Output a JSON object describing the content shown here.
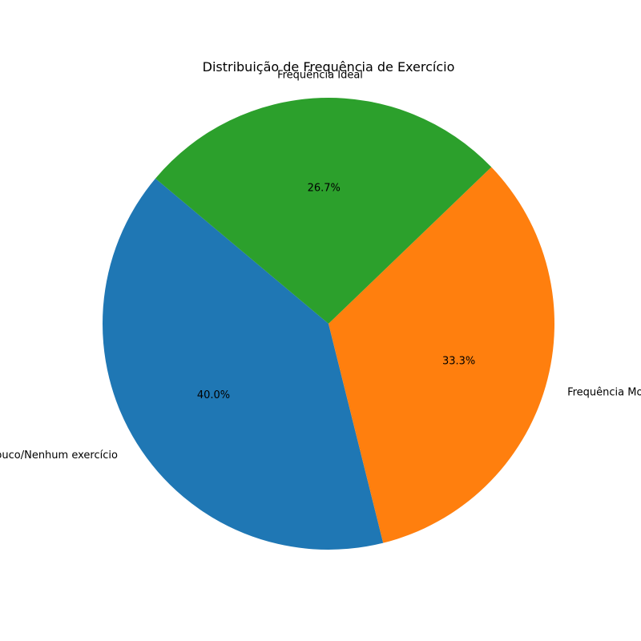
{
  "chart_data": {
    "type": "pie",
    "title": "Distribuição de Frequência de Exercício",
    "labels": [
      "Pouco/Nenhum exercício",
      "Frequência Moderada",
      "Frequência Ideal"
    ],
    "values": [
      40.0,
      33.3,
      26.7
    ],
    "percent_labels": [
      "40.0%",
      "33.3%",
      "26.7%"
    ],
    "colors": [
      "#1f77b4",
      "#ff7f0e",
      "#2ca02c"
    ],
    "start_angle_deg": 140,
    "direction": "counterclockwise",
    "legend": "none"
  }
}
